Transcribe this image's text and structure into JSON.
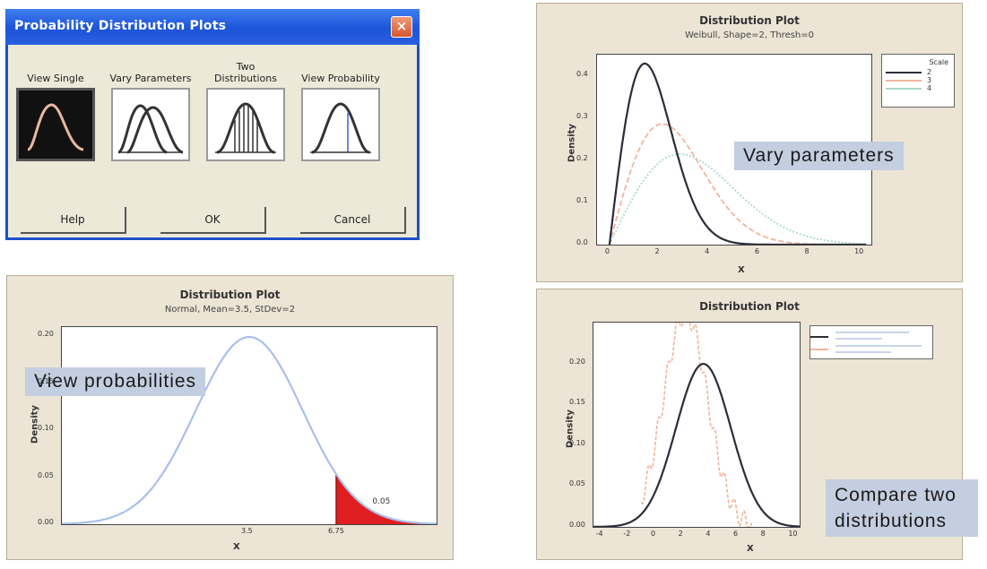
{
  "dialog": {
    "title": "Probability Distribution Plots",
    "close_glyph": "×",
    "tools": [
      {
        "label": "View Single"
      },
      {
        "label": "Vary Parameters"
      },
      {
        "label": "Two Distributions"
      },
      {
        "label": "View Probability"
      }
    ],
    "buttons": {
      "help": "Help",
      "ok": "OK",
      "cancel": "Cancel"
    }
  },
  "plots": {
    "vary": {
      "title": "Distribution Plot",
      "subtitle": "Weibull, Shape=2, Thresh=0",
      "ylabel": "Density",
      "xlabel": "X",
      "yticks": [
        "0.0",
        "0.1",
        "0.2",
        "0.3",
        "0.4"
      ],
      "xticks": [
        "0",
        "2",
        "4",
        "6",
        "8",
        "10"
      ],
      "legend_title": "Scale",
      "legend": [
        "2",
        "3",
        "4"
      ],
      "callout": "Vary parameters"
    },
    "prob": {
      "title": "Distribution Plot",
      "subtitle": "Normal, Mean=3.5, StDev=2",
      "ylabel": "Density",
      "xlabel": "X",
      "yticks": [
        "0.00",
        "0.05",
        "0.10",
        "0.15",
        "0.20"
      ],
      "xticks": [
        "3.5",
        "6.75"
      ],
      "area_label": "0.05",
      "callout": "View probabilities"
    },
    "two": {
      "title": "Distribution Plot",
      "ylabel": "Density",
      "xlabel": "X",
      "yticks": [
        "0.00",
        "0.05",
        "0.10",
        "0.15",
        "0.20"
      ],
      "xticks": [
        "-4",
        "-2",
        "0",
        "2",
        "4",
        "6",
        "8",
        "10"
      ],
      "callout_line1": "Compare two",
      "callout_line2": "distributions"
    }
  },
  "colors": {
    "dialog_title": "#1c54d8",
    "panel_bg": "#ece4d4",
    "curve_dark": "#2c2c3a",
    "curve_orange": "#f2b49a",
    "curve_teal": "#a9d9cf",
    "curve_blue": "#a8c0ec",
    "area_red": "#e02020",
    "callout_bg": "#c3cee0"
  },
  "chart_data": [
    {
      "type": "line",
      "title": "Distribution Plot",
      "subtitle": "Weibull, Shape=2, Thresh=0",
      "xlabel": "X",
      "ylabel": "Density",
      "xlim": [
        -0.5,
        10.5
      ],
      "ylim": [
        0,
        0.45
      ],
      "series": [
        {
          "name": "2",
          "distribution": "weibull",
          "shape": 2,
          "scale": 2
        },
        {
          "name": "3",
          "distribution": "weibull",
          "shape": 2,
          "scale": 3
        },
        {
          "name": "4",
          "distribution": "weibull",
          "shape": 2,
          "scale": 4
        }
      ],
      "legend_title": "Scale",
      "legend_position": "top-right"
    },
    {
      "type": "area",
      "title": "Distribution Plot",
      "subtitle": "Normal, Mean=3.5, StDev=2",
      "xlabel": "X",
      "ylabel": "Density",
      "xlim": [
        -3.5,
        10.5
      ],
      "ylim": [
        0,
        0.21
      ],
      "series": [
        {
          "distribution": "normal",
          "mean": 3.5,
          "sd": 2
        }
      ],
      "shaded_from": 6.75,
      "shaded_probability": 0.05
    },
    {
      "type": "line",
      "title": "Distribution Plot",
      "xlabel": "X",
      "ylabel": "Density",
      "xlim": [
        -4.5,
        10.5
      ],
      "ylim": [
        0,
        0.25
      ],
      "series": [
        {
          "distribution": "normal",
          "mean": 3.5,
          "sd": 2
        }
      ],
      "legend_position": "top-right"
    }
  ]
}
